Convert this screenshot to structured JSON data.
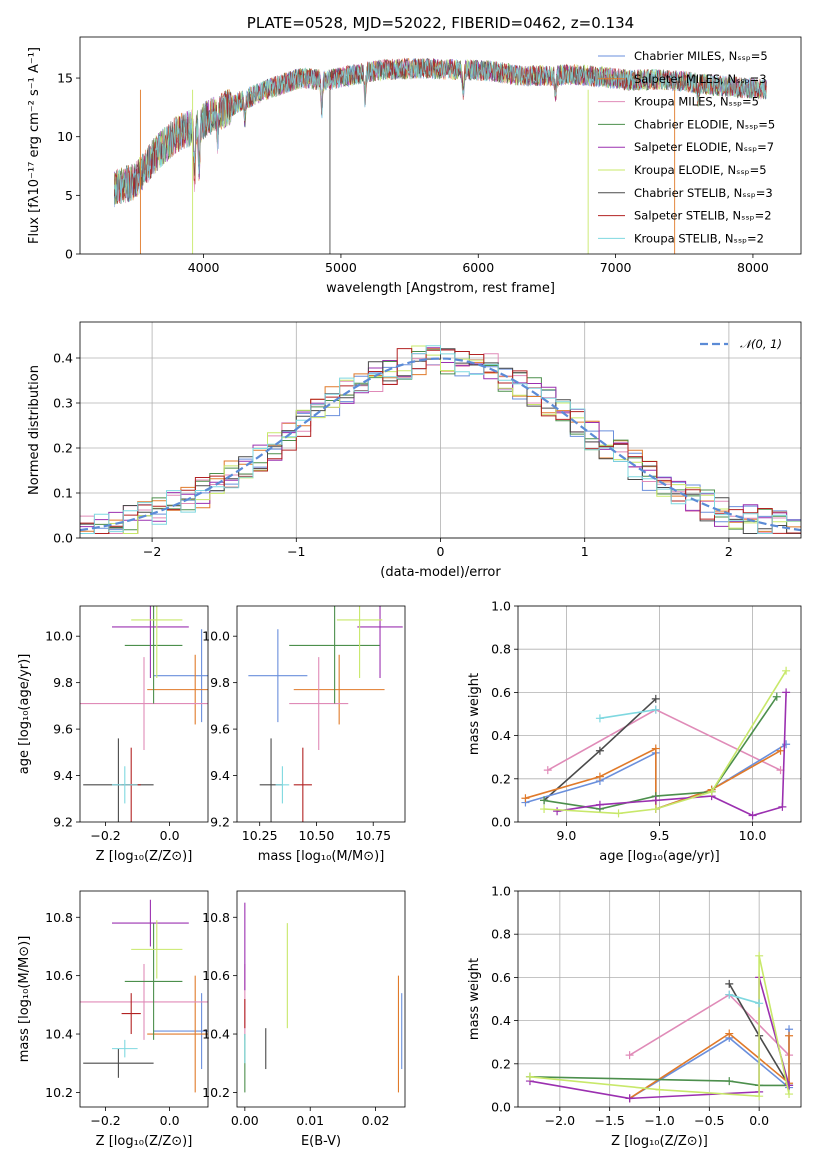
{
  "chart_data": [
    {
      "id": "spectrum",
      "type": "line",
      "title": "PLATE=0528, MJD=52022, FIBERID=0462, z=0.134",
      "xlabel": "wavelength [Angstrom, rest frame]",
      "ylabel": "Flux [fλ10⁻¹⁷ erg cm⁻² s⁻¹ A⁻¹]",
      "xlim": [
        3100,
        8350
      ],
      "ylim": [
        0,
        18.5
      ],
      "xticks": [
        "4000",
        "5000",
        "6000",
        "7000",
        "8000"
      ],
      "yticks": [
        "0",
        "5",
        "10",
        "15"
      ],
      "grid": false,
      "legend_position": "right",
      "legend": [
        {
          "label": "Chabrier MILES, Nₛₛₚ=5",
          "color": "#6a8fdc"
        },
        {
          "label": "Salpeter MILES, Nₛₛₚ=3",
          "color": "#e07a2a"
        },
        {
          "label": "Kroupa MILES, Nₛₛₚ=5",
          "color": "#e08bb8"
        },
        {
          "label": "Chabrier ELODIE, Nₛₛₚ=5",
          "color": "#4c8f4c"
        },
        {
          "label": "Salpeter ELODIE, Nₛₛₚ=7",
          "color": "#9b30b0"
        },
        {
          "label": "Kroupa ELODIE, Nₛₛₚ=5",
          "color": "#c8e86a"
        },
        {
          "label": "Chabrier STELIB, Nₛₛₚ=3",
          "color": "#4a4a4a"
        },
        {
          "label": "Salpeter STELIB, Nₛₛₚ=2",
          "color": "#b22222"
        },
        {
          "label": "Kroupa STELIB, Nₛₛₚ=2",
          "color": "#7fd8e0"
        }
      ],
      "continuum": [
        [
          3350,
          5.6
        ],
        [
          3500,
          6.2
        ],
        [
          3650,
          8.5
        ],
        [
          3800,
          10.2
        ],
        [
          3950,
          11.0
        ],
        [
          4100,
          12.0
        ],
        [
          4300,
          13.2
        ],
        [
          4500,
          14.2
        ],
        [
          4700,
          15.0
        ],
        [
          4900,
          14.8
        ],
        [
          5100,
          15.3
        ],
        [
          5300,
          15.7
        ],
        [
          5500,
          15.8
        ],
        [
          5700,
          15.8
        ],
        [
          5900,
          15.7
        ],
        [
          6100,
          15.6
        ],
        [
          6300,
          15.2
        ],
        [
          6500,
          15.2
        ],
        [
          6700,
          15.3
        ],
        [
          6900,
          15.1
        ],
        [
          7100,
          14.8
        ],
        [
          7300,
          14.9
        ],
        [
          7500,
          14.7
        ],
        [
          7700,
          14.4
        ],
        [
          7900,
          14.2
        ],
        [
          8100,
          14.0
        ]
      ]
    },
    {
      "id": "residuals",
      "type": "line",
      "xlabel": "(data-model)/error",
      "ylabel": "Normed distribution",
      "xlim": [
        -2.5,
        2.5
      ],
      "ylim": [
        0,
        0.48
      ],
      "xticks": [
        "−2",
        "−1",
        "0",
        "1",
        "2"
      ],
      "yticks": [
        "0.0",
        "0.1",
        "0.2",
        "0.3",
        "0.4"
      ],
      "grid": true,
      "legend_position": "top-right",
      "legend": [
        {
          "label": "𝒩(0, 1)",
          "color": "#5b8bd6"
        }
      ]
    },
    {
      "id": "age_vs_Z",
      "type": "scatter",
      "xlabel": "Z [log₁₀(Z/Z⊙)]",
      "ylabel": "age  [log₁₀(age/yr)]",
      "xlim": [
        -0.28,
        0.12
      ],
      "ylim": [
        9.2,
        10.13
      ],
      "xticks": [
        "−0.2",
        "0.0"
      ],
      "yticks": [
        "9.2",
        "9.4",
        "9.6",
        "9.8",
        "10.0"
      ],
      "grid": false,
      "crosses": [
        {
          "color": "#6a8fdc",
          "x": 0.1,
          "y": 9.83,
          "xerr": 0.15,
          "yerr": 0.2
        },
        {
          "color": "#e07a2a",
          "x": 0.08,
          "y": 9.77,
          "xerr": 0.15,
          "yerr": 0.15
        },
        {
          "color": "#e08bb8",
          "x": -0.08,
          "y": 9.71,
          "xerr": 0.2,
          "yerr": 0.2
        },
        {
          "color": "#4c8f4c",
          "x": -0.05,
          "y": 9.96,
          "xerr": 0.09,
          "yerr": 0.25
        },
        {
          "color": "#9b30b0",
          "x": -0.06,
          "y": 10.04,
          "xerr": 0.12,
          "yerr": 0.22
        },
        {
          "color": "#c8e86a",
          "x": -0.04,
          "y": 10.07,
          "xerr": 0.08,
          "yerr": 0.25
        },
        {
          "color": "#4a4a4a",
          "x": -0.16,
          "y": 9.36,
          "xerr": 0.11,
          "yerr": 0.2
        },
        {
          "color": "#b22222",
          "x": -0.12,
          "y": 9.36,
          "xerr": 0.03,
          "yerr": 0.16
        },
        {
          "color": "#7fd8e0",
          "x": -0.14,
          "y": 9.36,
          "xerr": 0.04,
          "yerr": 0.08
        }
      ]
    },
    {
      "id": "age_vs_mass",
      "type": "scatter",
      "xlabel": "mass [log₁₀(M/M⊙)]",
      "ylabel": "",
      "xlim": [
        10.15,
        10.89
      ],
      "ylim": [
        9.2,
        10.13
      ],
      "xticks": [
        "10.25",
        "10.50",
        "10.75"
      ],
      "yticks": [
        "9.2",
        "9.4",
        "9.6",
        "9.8",
        "10.0"
      ],
      "grid": false,
      "crosses": [
        {
          "color": "#6a8fdc",
          "x": 10.33,
          "y": 9.83,
          "xerr": 0.13,
          "yerr": 0.2
        },
        {
          "color": "#e07a2a",
          "x": 10.6,
          "y": 9.77,
          "xerr": 0.2,
          "yerr": 0.15
        },
        {
          "color": "#e08bb8",
          "x": 10.51,
          "y": 9.71,
          "xerr": 0.13,
          "yerr": 0.2
        },
        {
          "color": "#4c8f4c",
          "x": 10.58,
          "y": 9.96,
          "xerr": 0.2,
          "yerr": 0.25
        },
        {
          "color": "#9b30b0",
          "x": 10.78,
          "y": 10.04,
          "xerr": 0.1,
          "yerr": 0.22
        },
        {
          "color": "#c8e86a",
          "x": 10.69,
          "y": 10.07,
          "xerr": 0.1,
          "yerr": 0.25
        },
        {
          "color": "#4a4a4a",
          "x": 10.3,
          "y": 9.36,
          "xerr": 0.05,
          "yerr": 0.2
        },
        {
          "color": "#b22222",
          "x": 10.44,
          "y": 9.36,
          "xerr": 0.04,
          "yerr": 0.16
        },
        {
          "color": "#7fd8e0",
          "x": 10.35,
          "y": 9.36,
          "xerr": 0.03,
          "yerr": 0.08
        }
      ]
    },
    {
      "id": "weight_vs_age",
      "type": "line",
      "xlabel": "age  [log₁₀(age/yr)]",
      "ylabel": "mass weight",
      "xlim": [
        8.74,
        10.26
      ],
      "ylim": [
        0,
        1
      ],
      "xticks": [
        "9.0",
        "9.5",
        "10.0"
      ],
      "yticks": [
        "0.0",
        "0.2",
        "0.4",
        "0.6",
        "0.8",
        "1.0"
      ],
      "grid": true,
      "series": [
        {
          "color": "#e08bb8",
          "points": [
            [
              8.9,
              0.24
            ],
            [
              9.48,
              0.52
            ],
            [
              10.15,
              0.24
            ]
          ]
        },
        {
          "color": "#4a4a4a",
          "points": [
            [
              8.88,
              0.1
            ],
            [
              9.18,
              0.33
            ],
            [
              9.48,
              0.57
            ]
          ]
        },
        {
          "color": "#6a8fdc",
          "points": [
            [
              8.78,
              0.09
            ],
            [
              9.18,
              0.19
            ],
            [
              9.48,
              0.32
            ],
            [
              9.48,
              0.06
            ],
            [
              9.78,
              0.15
            ],
            [
              10.18,
              0.36
            ]
          ]
        },
        {
          "color": "#e07a2a",
          "points": [
            [
              8.78,
              0.11
            ],
            [
              9.18,
              0.21
            ],
            [
              9.48,
              0.34
            ],
            [
              9.48,
              0.06
            ],
            [
              9.78,
              0.15
            ],
            [
              10.15,
              0.33
            ]
          ]
        },
        {
          "color": "#4c8f4c",
          "points": [
            [
              8.88,
              0.1
            ],
            [
              9.18,
              0.06
            ],
            [
              9.48,
              0.12
            ],
            [
              9.78,
              0.14
            ],
            [
              10.13,
              0.58
            ]
          ]
        },
        {
          "color": "#9b30b0",
          "points": [
            [
              8.95,
              0.05
            ],
            [
              9.18,
              0.08
            ],
            [
              9.48,
              0.1
            ],
            [
              9.78,
              0.12
            ],
            [
              10.0,
              0.03
            ],
            [
              10.16,
              0.07
            ],
            [
              10.18,
              0.6
            ]
          ]
        },
        {
          "color": "#c8e86a",
          "points": [
            [
              8.88,
              0.06
            ],
            [
              9.28,
              0.04
            ],
            [
              9.48,
              0.06
            ],
            [
              9.78,
              0.14
            ],
            [
              10.18,
              0.7
            ]
          ]
        },
        {
          "color": "#7fd8e0",
          "points": [
            [
              9.18,
              0.48
            ],
            [
              9.48,
              0.52
            ]
          ]
        }
      ]
    },
    {
      "id": "mass_vs_Z",
      "type": "scatter",
      "xlabel": "Z [log₁₀(Z/Z⊙)]",
      "ylabel": "mass [log₁₀(M/M⊙)]",
      "xlim": [
        -0.28,
        0.12
      ],
      "ylim": [
        10.15,
        10.89
      ],
      "xticks": [
        "−0.2",
        "0.0"
      ],
      "yticks": [
        "10.2",
        "10.4",
        "10.6",
        "10.8"
      ],
      "grid": false,
      "crosses": [
        {
          "color": "#6a8fdc",
          "x": 0.1,
          "y": 10.41,
          "xerr": 0.15,
          "yerr": 0.13
        },
        {
          "color": "#e07a2a",
          "x": 0.08,
          "y": 10.4,
          "xerr": 0.15,
          "yerr": 0.2
        },
        {
          "color": "#e08bb8",
          "x": -0.08,
          "y": 10.51,
          "xerr": 0.2,
          "yerr": 0.13
        },
        {
          "color": "#4c8f4c",
          "x": -0.05,
          "y": 10.58,
          "xerr": 0.09,
          "yerr": 0.2
        },
        {
          "color": "#9b30b0",
          "x": -0.06,
          "y": 10.78,
          "xerr": 0.12,
          "yerr": 0.08
        },
        {
          "color": "#c8e86a",
          "x": -0.04,
          "y": 10.69,
          "xerr": 0.08,
          "yerr": 0.1
        },
        {
          "color": "#4a4a4a",
          "x": -0.16,
          "y": 10.3,
          "xerr": 0.11,
          "yerr": 0.05
        },
        {
          "color": "#b22222",
          "x": -0.12,
          "y": 10.47,
          "xerr": 0.03,
          "yerr": 0.07
        },
        {
          "color": "#7fd8e0",
          "x": -0.14,
          "y": 10.35,
          "xerr": 0.04,
          "yerr": 0.03
        }
      ]
    },
    {
      "id": "mass_vs_ebv",
      "type": "scatter",
      "xlabel": "E(B-V)",
      "ylabel": "",
      "xlim": [
        -0.0012,
        0.0245
      ],
      "ylim": [
        10.15,
        10.89
      ],
      "xticks": [
        "0.00",
        "0.01",
        "0.02"
      ],
      "yticks": [
        "10.2",
        "10.4",
        "10.6",
        "10.8"
      ],
      "grid": false,
      "crosses": [
        {
          "color": "#6a8fdc",
          "x": 0.024,
          "y": 10.41,
          "xerr": 0,
          "yerr": 0.13
        },
        {
          "color": "#e07a2a",
          "x": 0.0235,
          "y": 10.4,
          "xerr": 0,
          "yerr": 0.2
        },
        {
          "color": "#e08bb8",
          "x": 0.0,
          "y": 10.51,
          "xerr": 0,
          "yerr": 0.13
        },
        {
          "color": "#4c8f4c",
          "x": 0.0,
          "y": 10.3,
          "xerr": 0,
          "yerr": 0.1
        },
        {
          "color": "#9b30b0",
          "x": 0.0,
          "y": 10.7,
          "xerr": 0,
          "yerr": 0.15
        },
        {
          "color": "#c8e86a",
          "x": 0.0065,
          "y": 10.6,
          "xerr": 0,
          "yerr": 0.18
        },
        {
          "color": "#4a4a4a",
          "x": 0.0032,
          "y": 10.35,
          "xerr": 0,
          "yerr": 0.07
        },
        {
          "color": "#b22222",
          "x": 0.0,
          "y": 10.47,
          "xerr": 0,
          "yerr": 0.05
        },
        {
          "color": "#7fd8e0",
          "x": 0.0,
          "y": 10.35,
          "xerr": 0,
          "yerr": 0.05
        }
      ]
    },
    {
      "id": "weight_vs_Z",
      "type": "line",
      "xlabel": "Z [log₁₀(Z/Z⊙)]",
      "ylabel": "mass weight",
      "xlim": [
        -2.42,
        0.42
      ],
      "ylim": [
        0,
        1
      ],
      "xticks": [
        "−2.0",
        "−1.5",
        "−1.0",
        "−0.5",
        "0.0"
      ],
      "yticks": [
        "0.0",
        "0.2",
        "0.4",
        "0.6",
        "0.8",
        "1.0"
      ],
      "grid": true,
      "series": [
        {
          "color": "#e08bb8",
          "points": [
            [
              -1.3,
              0.24
            ],
            [
              -0.3,
              0.52
            ],
            [
              0.3,
              0.24
            ]
          ]
        },
        {
          "color": "#4a4a4a",
          "points": [
            [
              -0.3,
              0.57
            ],
            [
              0.0,
              0.33
            ],
            [
              0.3,
              0.1
            ]
          ]
        },
        {
          "color": "#6a8fdc",
          "points": [
            [
              -1.3,
              0.04
            ],
            [
              -0.3,
              0.32
            ],
            [
              0.3,
              0.09
            ],
            [
              0.3,
              0.36
            ]
          ]
        },
        {
          "color": "#e07a2a",
          "points": [
            [
              -1.3,
              0.04
            ],
            [
              -0.3,
              0.34
            ],
            [
              0.3,
              0.11
            ],
            [
              0.3,
              0.33
            ]
          ]
        },
        {
          "color": "#4c8f4c",
          "points": [
            [
              -2.3,
              0.14
            ],
            [
              -0.3,
              0.12
            ],
            [
              0.0,
              0.1
            ],
            [
              0.3,
              0.1
            ]
          ]
        },
        {
          "color": "#9b30b0",
          "points": [
            [
              -2.3,
              0.12
            ],
            [
              -1.3,
              0.04
            ],
            [
              0.0,
              0.07
            ],
            [
              0.0,
              0.6
            ],
            [
              0.3,
              0.1
            ]
          ]
        },
        {
          "color": "#c8e86a",
          "points": [
            [
              -2.3,
              0.14
            ],
            [
              -1.0,
              0.08
            ],
            [
              0.0,
              0.05
            ],
            [
              0.0,
              0.7
            ],
            [
              0.3,
              0.06
            ]
          ]
        },
        {
          "color": "#7fd8e0",
          "points": [
            [
              -0.3,
              0.52
            ],
            [
              0.0,
              0.48
            ]
          ]
        }
      ]
    }
  ]
}
